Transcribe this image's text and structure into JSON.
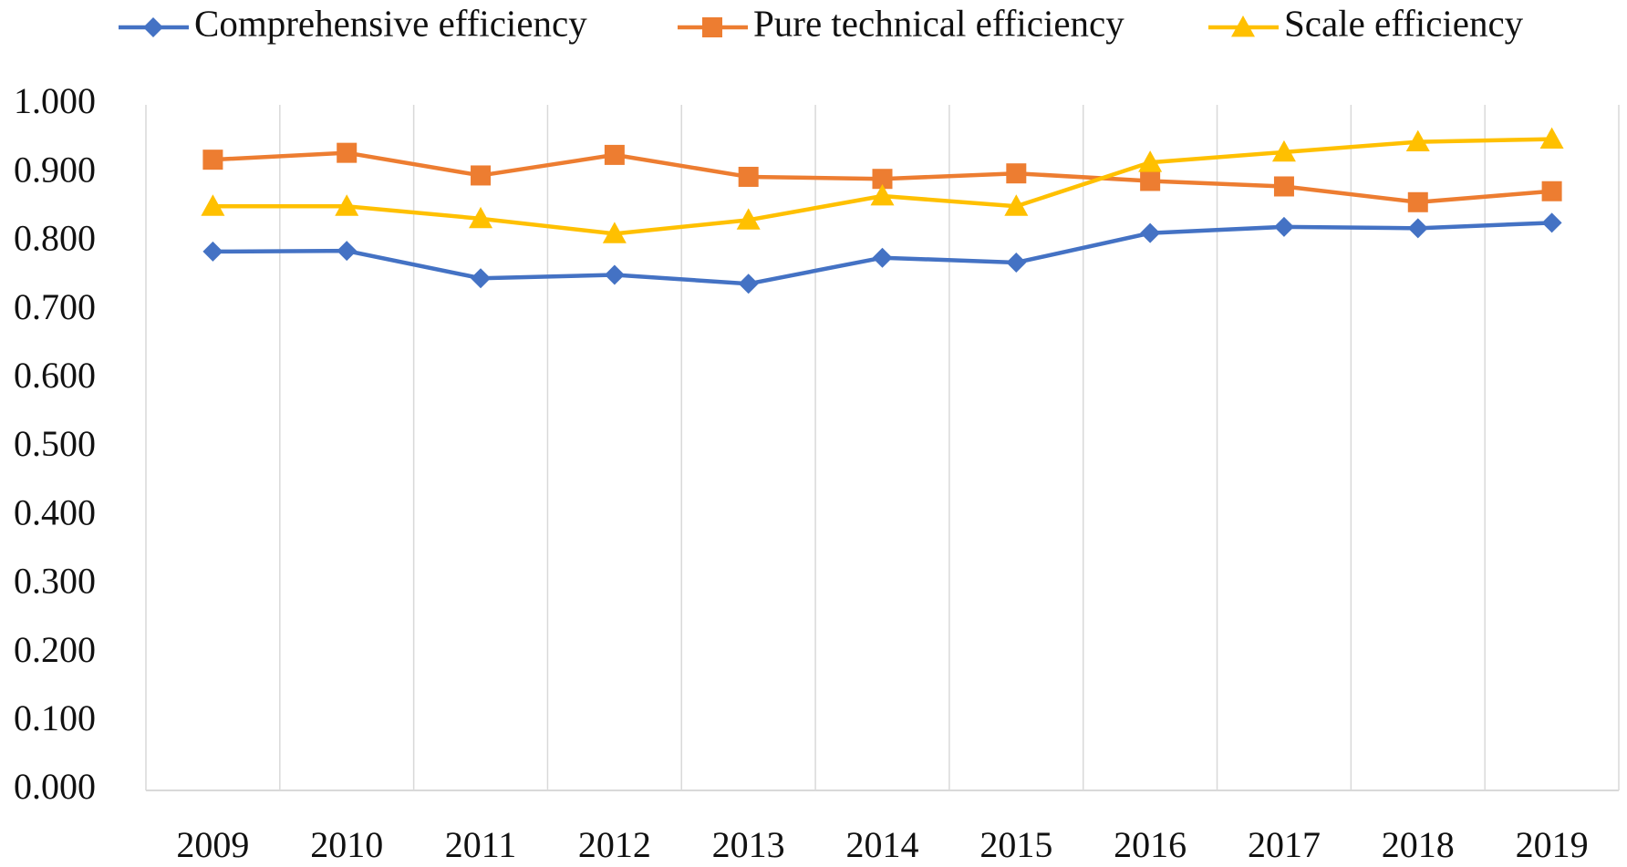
{
  "chart_data": {
    "type": "line",
    "title": "",
    "xlabel": "",
    "ylabel": "",
    "categories": [
      "2009",
      "2010",
      "2011",
      "2012",
      "2013",
      "2014",
      "2015",
      "2016",
      "2017",
      "2018",
      "2019"
    ],
    "ylim": [
      0,
      1
    ],
    "yticks": [
      0,
      0.1,
      0.2,
      0.3,
      0.4,
      0.5,
      0.6,
      0.7,
      0.8,
      0.9,
      1.0
    ],
    "ytick_labels": [
      "0.000",
      "0.100",
      "0.200",
      "0.300",
      "0.400",
      "0.500",
      "0.600",
      "0.700",
      "0.800",
      "0.900",
      "1.000"
    ],
    "grid": "vertical",
    "legend_position": "top",
    "series": [
      {
        "name": "Comprehensive efficiency",
        "color": "#4472C4",
        "marker": "diamond",
        "values": [
          0.786,
          0.787,
          0.747,
          0.752,
          0.739,
          0.777,
          0.77,
          0.813,
          0.822,
          0.82,
          0.828
        ]
      },
      {
        "name": "Pure technical efficiency",
        "color": "#ED7D31",
        "marker": "square",
        "values": [
          0.92,
          0.93,
          0.897,
          0.927,
          0.895,
          0.892,
          0.9,
          0.889,
          0.881,
          0.858,
          0.874
        ]
      },
      {
        "name": "Scale efficiency",
        "color": "#FFC000",
        "marker": "triangle",
        "values": [
          0.852,
          0.852,
          0.834,
          0.812,
          0.832,
          0.867,
          0.852,
          0.916,
          0.931,
          0.946,
          0.95
        ]
      }
    ]
  }
}
